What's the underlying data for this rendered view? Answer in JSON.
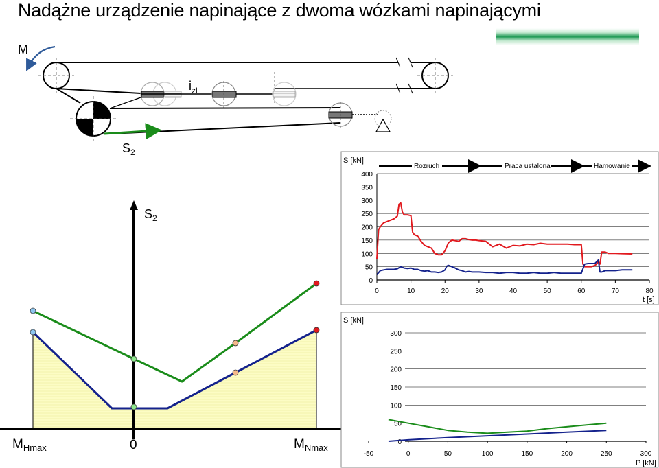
{
  "title": "Nadążne urządzenie napinające z dwoma wózkami napinającymi",
  "colors": {
    "red": "#e1191e",
    "blue": "#14228c",
    "green": "#1a8c1a",
    "navy": "#1f2e8c",
    "fill_yellow": "#fcfcc4",
    "arrow_blue": "#2f5b9a"
  },
  "scheme": {
    "moment_label": "M",
    "tension_label_main": "S",
    "tension_label_sub": "2",
    "izl_label_main": "i",
    "izl_label_sub": "zl"
  },
  "left_diagram": {
    "y_axis_label_main": "S",
    "y_axis_label_sub": "2",
    "origin_label": "0",
    "left_axis_label_main": "M",
    "left_axis_label_sub": "Hmax",
    "right_axis_label_main": "M",
    "right_axis_label_sub": "Nmax"
  },
  "chart_top": {
    "type": "line",
    "ylabel": "S [kN]",
    "xlabel": "t [s]",
    "yticks": [
      "400",
      "350",
      "300",
      "250",
      "200",
      "150",
      "100",
      "50",
      "0"
    ],
    "xticks": [
      "0",
      "10",
      "20",
      "30",
      "40",
      "50",
      "60",
      "70",
      "80"
    ],
    "phases": [
      "Rozruch",
      "Praca ustalona",
      "Hamowanie"
    ]
  },
  "chart_bottom": {
    "type": "line",
    "ylabel": "S [kN]",
    "xlabel": "P [kN]",
    "yticks": [
      "300",
      "250",
      "200",
      "150",
      "100",
      "50",
      "0"
    ],
    "xticks": [
      "-50",
      "0",
      "50",
      "100",
      "150",
      "200",
      "250",
      "300"
    ]
  },
  "chart_data": [
    {
      "type": "line",
      "ylabel": "S [kN]",
      "xlabel": "t [s]",
      "xlim": [
        0,
        80
      ],
      "ylim": [
        0,
        400
      ],
      "series": [
        {
          "x": [
            0,
            0.5,
            1,
            2,
            3,
            4,
            5,
            6,
            6.5,
            7,
            7.5,
            8,
            9,
            10,
            10.5,
            11,
            12,
            13,
            14,
            15,
            16,
            17,
            18,
            19,
            20,
            21,
            22,
            23,
            24,
            25,
            26,
            27,
            28,
            29,
            30,
            32,
            34,
            36,
            38,
            40,
            42,
            44,
            46,
            48,
            50,
            52,
            54,
            56,
            58,
            59,
            60,
            60.5,
            61,
            62,
            63,
            64,
            64.5,
            65,
            65.5,
            66,
            67,
            68,
            70,
            72,
            75
          ],
          "values": [
            80,
            190,
            200,
            215,
            220,
            225,
            230,
            240,
            285,
            290,
            255,
            245,
            245,
            242,
            180,
            170,
            165,
            145,
            130,
            125,
            120,
            100,
            95,
            95,
            110,
            140,
            150,
            148,
            145,
            155,
            155,
            152,
            150,
            150,
            148,
            145,
            125,
            135,
            120,
            130,
            128,
            135,
            133,
            138,
            135,
            135,
            135,
            135,
            133,
            133,
            133,
            60,
            50,
            50,
            50,
            55,
            60,
            70,
            60,
            105,
            105,
            100,
            100,
            99,
            98
          ]
        },
        {
          "x": [
            0,
            1,
            2,
            3,
            4,
            5,
            6,
            7,
            8,
            9,
            10,
            11,
            12,
            13,
            14,
            15,
            16,
            17,
            18,
            19,
            20,
            20.5,
            21,
            22,
            23,
            24,
            25,
            26,
            27,
            28,
            30,
            32,
            34,
            36,
            38,
            40,
            42,
            44,
            46,
            48,
            50,
            52,
            54,
            56,
            58,
            60,
            61,
            62,
            63,
            64,
            65,
            65.5,
            66,
            67,
            68,
            70,
            72,
            75
          ],
          "values": [
            20,
            35,
            38,
            40,
            40,
            40,
            42,
            50,
            45,
            43,
            45,
            40,
            40,
            35,
            33,
            35,
            30,
            30,
            28,
            30,
            38,
            52,
            55,
            50,
            45,
            38,
            35,
            30,
            32,
            30,
            30,
            28,
            28,
            25,
            28,
            28,
            25,
            25,
            28,
            25,
            25,
            28,
            25,
            25,
            25,
            25,
            60,
            62,
            62,
            62,
            75,
            30,
            30,
            35,
            35,
            35,
            38,
            38
          ]
        }
      ]
    },
    {
      "type": "line",
      "ylabel": "S [kN]",
      "xlabel": "P [kN]",
      "xlim": [
        -50,
        300
      ],
      "ylim": [
        0,
        300
      ],
      "series": [
        {
          "x": [
            -25,
            0,
            25,
            50,
            75,
            100,
            125,
            150,
            175,
            200,
            225,
            240,
            250
          ],
          "values": [
            60,
            50,
            40,
            30,
            25,
            22,
            25,
            28,
            35,
            40,
            45,
            48,
            50
          ]
        },
        {
          "x": [
            -25,
            0,
            50,
            100,
            150,
            200,
            250
          ],
          "values": [
            0,
            4,
            10,
            15,
            20,
            25,
            30
          ]
        }
      ]
    }
  ]
}
